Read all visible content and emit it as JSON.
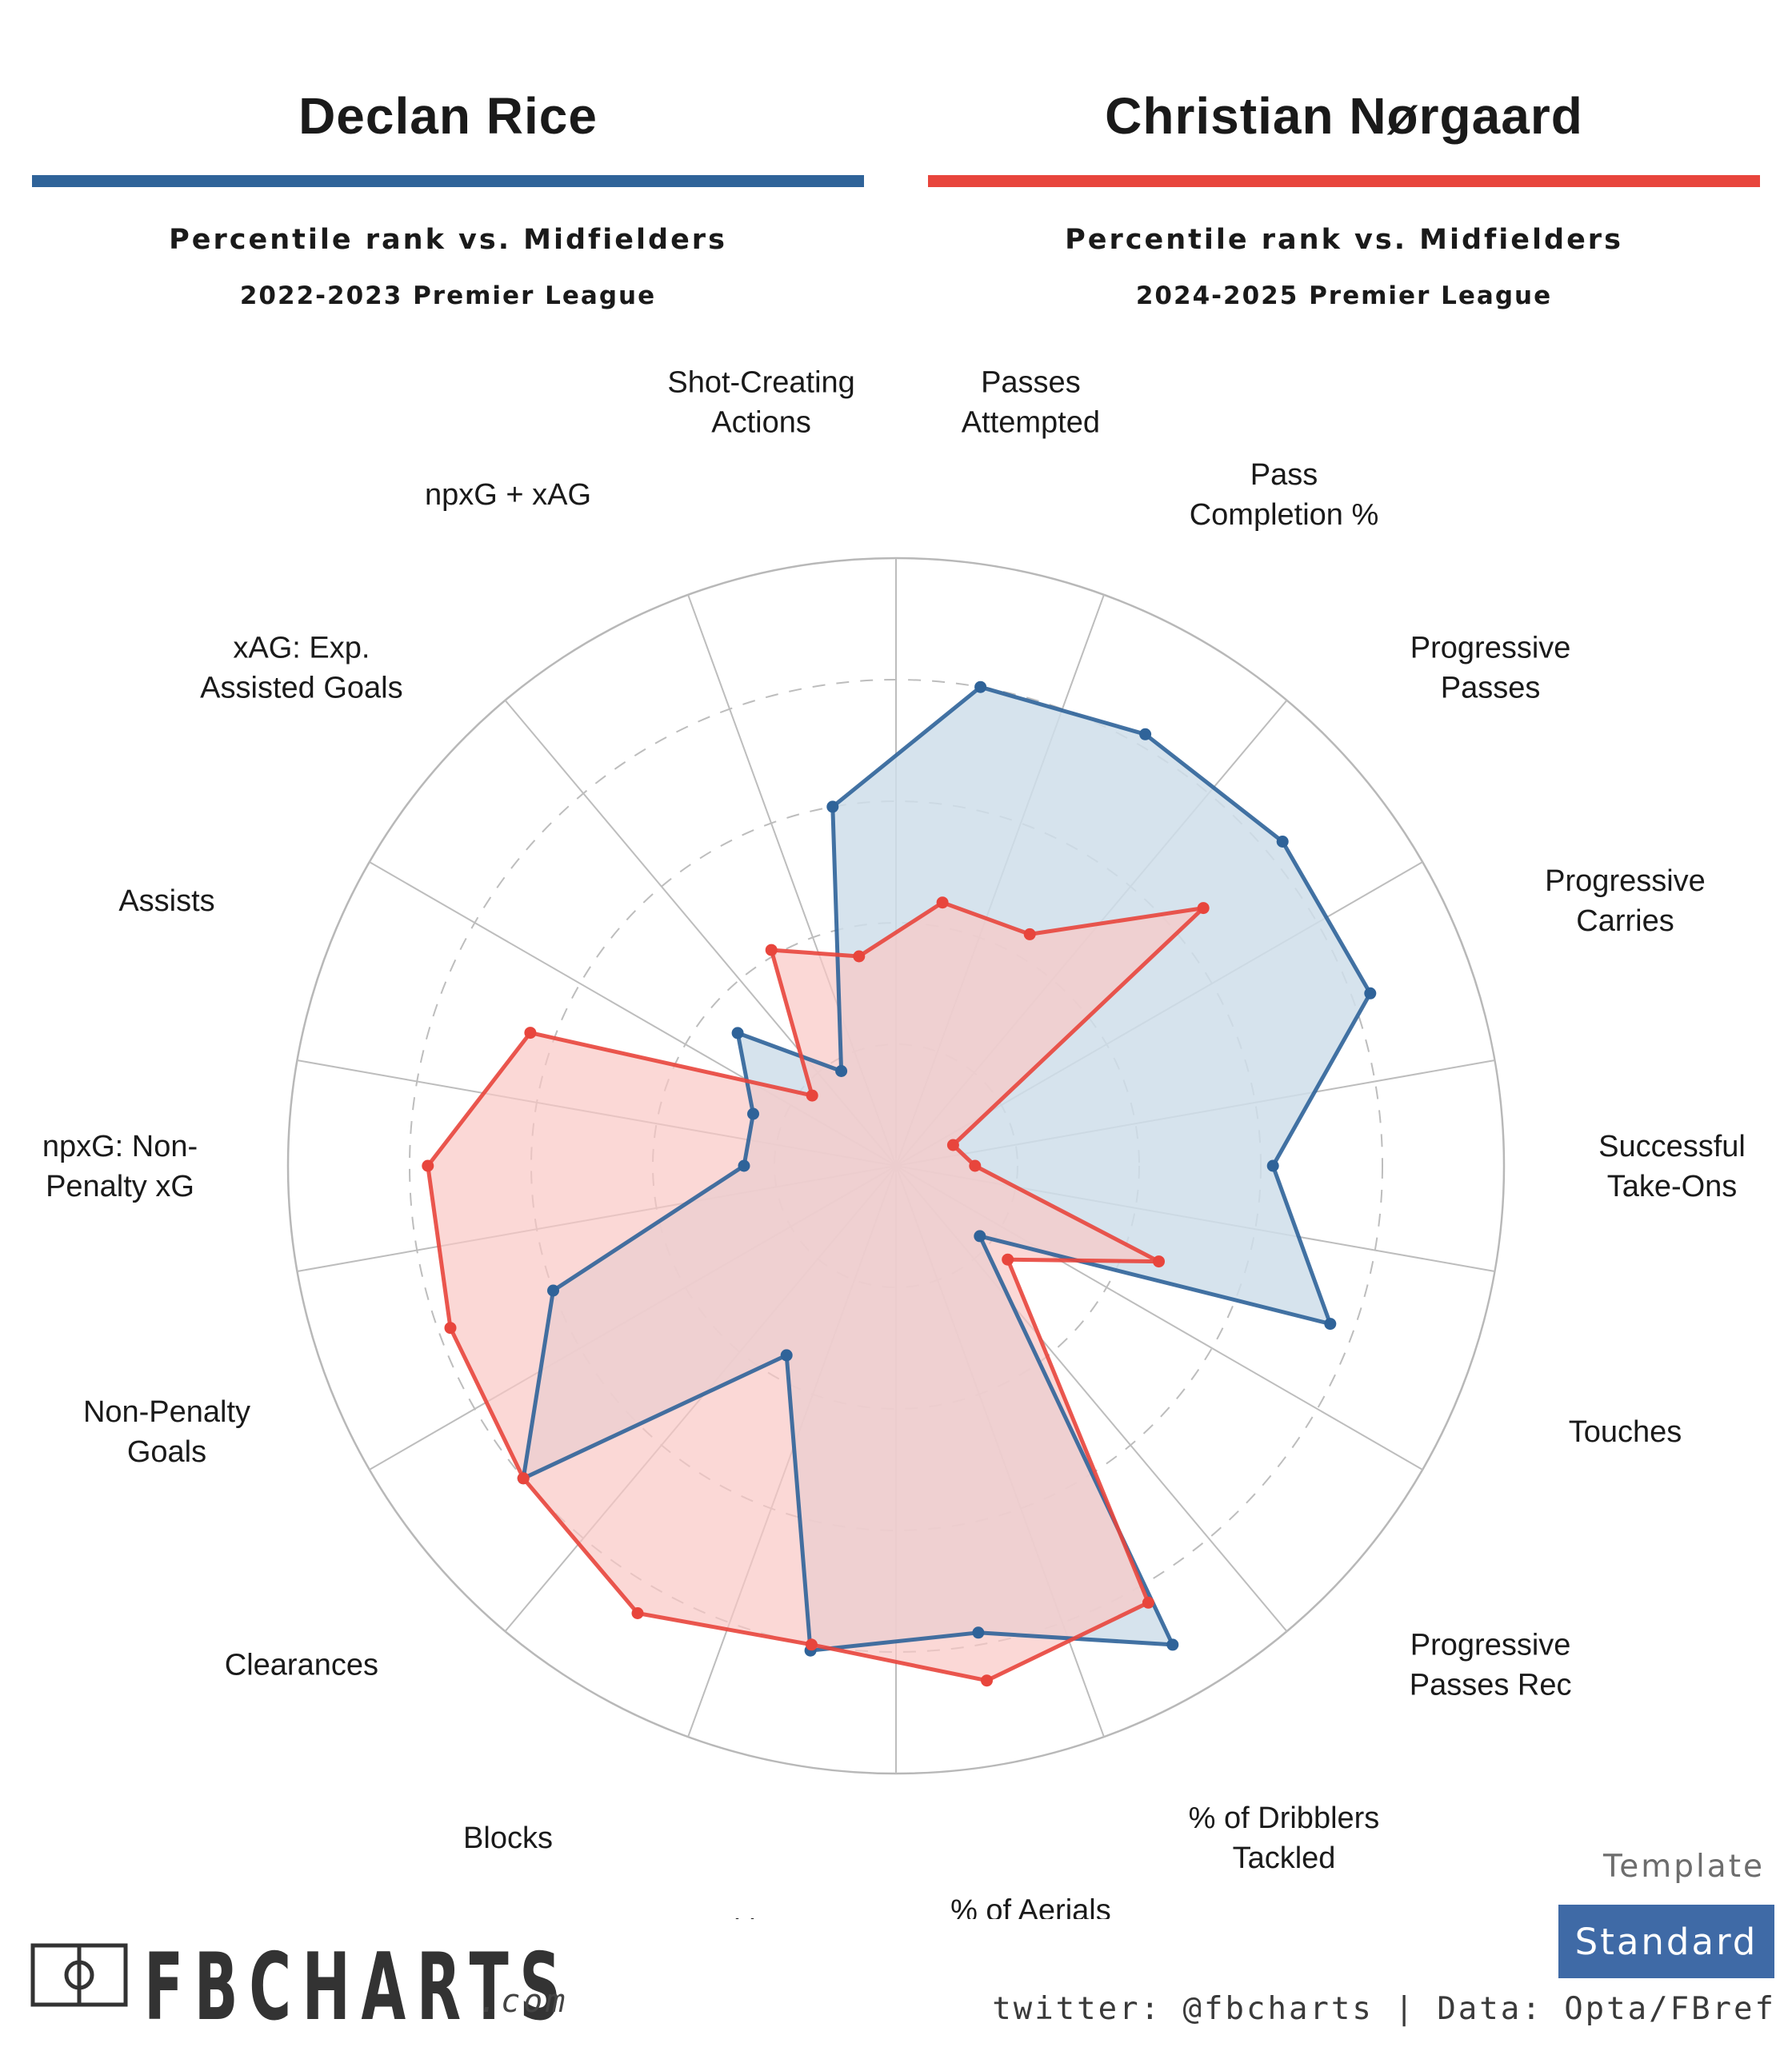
{
  "players": [
    {
      "name": "Declan Rice",
      "color": "#2f6399",
      "fill": "#cfdeea",
      "subtitle": "Percentile rank vs. Midfielders",
      "season": "2022-2023 Premier League"
    },
    {
      "name": "Christian Nørgaard",
      "color": "#e8453c",
      "fill": "#f9c8c5",
      "subtitle": "Percentile rank vs. Midfielders",
      "season": "2024-2025 Premier League"
    }
  ],
  "chart_data": {
    "type": "radar",
    "rlim": [
      0,
      100
    ],
    "rings": [
      20,
      40,
      60,
      80,
      100
    ],
    "categories": [
      "Passes\nAttempted",
      "Pass\nCompletion %",
      "Progressive\nPasses",
      "Progressive\nCarries",
      "Successful\nTake-Ons",
      "Touches",
      "Progressive\nPasses Rec",
      "% of Dribblers\nTackled",
      "% of Aerials\nWon",
      "Tkl+Int",
      "Blocks",
      "Clearances",
      "Non-Penalty\nGoals",
      "npxG: Non-\nPenalty xG",
      "Assists",
      "xAG: Exp.\nAssisted Goals",
      "npxG + xAG",
      "Shot-Creating\nActions"
    ],
    "series": [
      {
        "name": "Declan Rice",
        "values": [
          80,
          82,
          83,
          83,
          62,
          76,
          18,
          91,
          78,
          81,
          36,
          80,
          60,
          25,
          25,
          34,
          18,
          60
        ]
      },
      {
        "name": "Christian Nørgaard",
        "values": [
          44,
          44,
          66,
          10,
          13,
          46,
          24,
          83,
          86,
          80,
          85,
          80,
          78,
          77,
          64,
          18,
          41,
          35
        ]
      }
    ]
  },
  "footer": {
    "template_label": "Template",
    "template_value": "Standard",
    "logo_text": "FBCHARTS",
    "logo_suffix": ".com",
    "credit": "twitter: @fbcharts | Data: Opta/FBref"
  }
}
